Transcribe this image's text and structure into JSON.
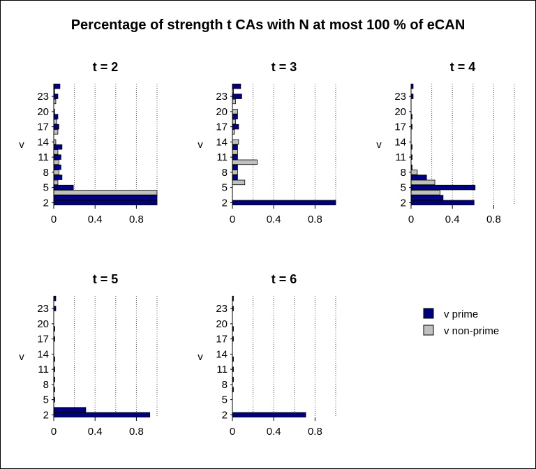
{
  "chart_data": {
    "type": "bar",
    "orientation": "horizontal",
    "title": "Percentage of strength t CAs with N at most 100 % of eCAN",
    "ylabel": "v",
    "xlim": [
      0,
      1
    ],
    "x_ticks": [
      "0",
      "0.4",
      "0.8"
    ],
    "y_ticks": [
      "2",
      "5",
      "8",
      "11",
      "14",
      "17",
      "20",
      "23"
    ],
    "grid": "vertical dotted",
    "legend_position": "right",
    "colors": {
      "v prime": "#000080",
      "v non-prime": "#c0c0c0"
    },
    "series_names": [
      "v prime",
      "v non-prime"
    ],
    "panels": [
      {
        "title": "t = 2",
        "v": [
          2,
          3,
          4,
          5,
          6,
          7,
          8,
          9,
          10,
          11,
          12,
          13,
          14,
          15,
          16,
          17,
          18,
          19,
          20,
          21,
          22,
          23,
          24,
          25
        ],
        "prime": [
          1.0,
          1.0,
          0,
          0.19,
          0,
          0.08,
          0,
          0.07,
          0,
          0.07,
          0,
          0.08,
          0,
          0,
          0,
          0.05,
          0,
          0.04,
          0,
          0,
          0,
          0.04,
          0,
          0.06
        ],
        "nonprime": [
          0,
          0,
          1.0,
          0,
          0.04,
          0,
          0.05,
          0,
          0.05,
          0,
          0.04,
          0,
          0.02,
          0,
          0.04,
          0,
          0.03,
          0,
          0.01,
          0,
          0.02,
          0,
          0.01,
          0
        ]
      },
      {
        "title": "t = 3",
        "v": [
          2,
          3,
          4,
          5,
          6,
          7,
          8,
          9,
          10,
          11,
          12,
          13,
          14,
          15,
          16,
          17,
          18,
          19,
          20,
          21,
          22,
          23,
          24,
          25
        ],
        "prime": [
          1.0,
          0.0,
          0,
          0.0,
          0,
          0.05,
          0,
          0.05,
          0,
          0.05,
          0,
          0.05,
          0,
          0,
          0,
          0.06,
          0,
          0.05,
          0,
          0,
          0,
          0.09,
          0,
          0.08
        ],
        "nonprime": [
          0,
          0,
          0,
          0,
          0.12,
          0,
          0.05,
          0,
          0.24,
          0,
          0.05,
          0,
          0.06,
          0,
          0.02,
          0,
          0.03,
          0,
          0.05,
          0,
          0.03,
          0,
          0.01,
          0
        ]
      },
      {
        "title": "t = 4",
        "v": [
          2,
          3,
          4,
          5,
          6,
          7,
          8,
          9,
          10,
          11,
          12,
          13,
          14,
          15,
          16,
          17,
          18,
          19,
          20,
          21,
          22,
          23,
          24,
          25
        ],
        "prime": [
          0.61,
          0.31,
          0,
          0.62,
          0,
          0.15,
          0,
          0.01,
          0,
          0.01,
          0,
          0.01,
          0,
          0,
          0,
          0.01,
          0,
          0.01,
          0,
          0,
          0,
          0.02,
          0,
          0.02
        ],
        "nonprime": [
          0,
          0,
          0.28,
          0,
          0.23,
          0,
          0.06,
          0,
          0,
          0,
          0,
          0,
          0,
          0,
          0,
          0,
          0,
          0,
          0,
          0,
          0,
          0,
          0,
          0
        ]
      },
      {
        "title": "t = 5",
        "v": [
          2,
          3,
          4,
          5,
          6,
          7,
          8,
          9,
          10,
          11,
          12,
          13,
          14,
          15,
          16,
          17,
          18,
          19,
          20,
          21,
          22,
          23,
          24,
          25
        ],
        "prime": [
          0.93,
          0.31,
          0,
          0.01,
          0,
          0.01,
          0,
          0.01,
          0,
          0.01,
          0,
          0.01,
          0,
          0,
          0,
          0.01,
          0,
          0.01,
          0,
          0,
          0,
          0.02,
          0,
          0.02
        ],
        "nonprime": [
          0,
          0,
          0,
          0,
          0,
          0,
          0,
          0,
          0,
          0,
          0,
          0,
          0,
          0,
          0,
          0,
          0,
          0,
          0,
          0,
          0,
          0,
          0,
          0
        ]
      },
      {
        "title": "t = 6",
        "v": [
          2,
          3,
          4,
          5,
          6,
          7,
          8,
          9,
          10,
          11,
          12,
          13,
          14,
          15,
          16,
          17,
          18,
          19,
          20,
          21,
          22,
          23,
          24,
          25
        ],
        "prime": [
          0.71,
          0,
          0,
          0,
          0,
          0.01,
          0,
          0.01,
          0,
          0.01,
          0,
          0.01,
          0,
          0,
          0,
          0.01,
          0,
          0.01,
          0,
          0,
          0,
          0.01,
          0,
          0.01
        ],
        "nonprime": [
          0,
          0,
          0,
          0,
          0,
          0,
          0,
          0,
          0,
          0,
          0,
          0,
          0,
          0,
          0,
          0,
          0,
          0,
          0,
          0,
          0,
          0,
          0,
          0
        ]
      }
    ]
  }
}
